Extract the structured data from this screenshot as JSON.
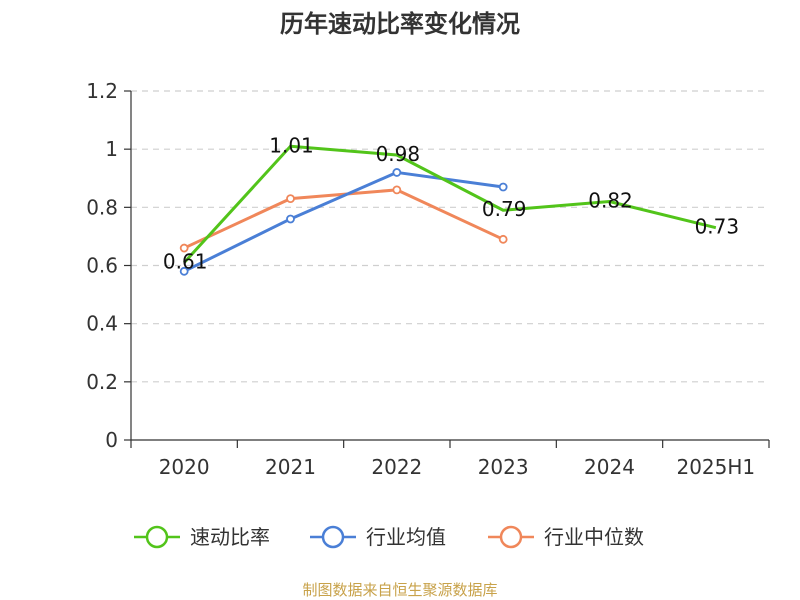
{
  "chart_data": {
    "type": "line",
    "title": "历年速动比率变化情况",
    "categories": [
      "2020",
      "2021",
      "2022",
      "2023",
      "2024",
      "2025H1"
    ],
    "ylim": [
      0,
      1.2
    ],
    "yticks": [
      "0",
      "0.2",
      "0.4",
      "0.6",
      "0.8",
      "1",
      "1.2"
    ],
    "grid": true,
    "legend_position": "bottom",
    "series": [
      {
        "name": "速动比率",
        "color": "#52c41a",
        "values": [
          0.61,
          1.01,
          0.98,
          0.79,
          0.82,
          0.73
        ],
        "labels": [
          "0.61",
          "1.01",
          "0.98",
          "0.79",
          "0.82",
          "0.73"
        ]
      },
      {
        "name": "行业均值",
        "color": "#4a7fd6",
        "values": [
          0.58,
          0.76,
          0.92,
          0.87,
          null,
          null
        ]
      },
      {
        "name": "行业中位数",
        "color": "#f0875a",
        "values": [
          0.66,
          0.83,
          0.86,
          0.69,
          null,
          null
        ]
      }
    ]
  },
  "source": "制图数据来自恒生聚源数据库"
}
